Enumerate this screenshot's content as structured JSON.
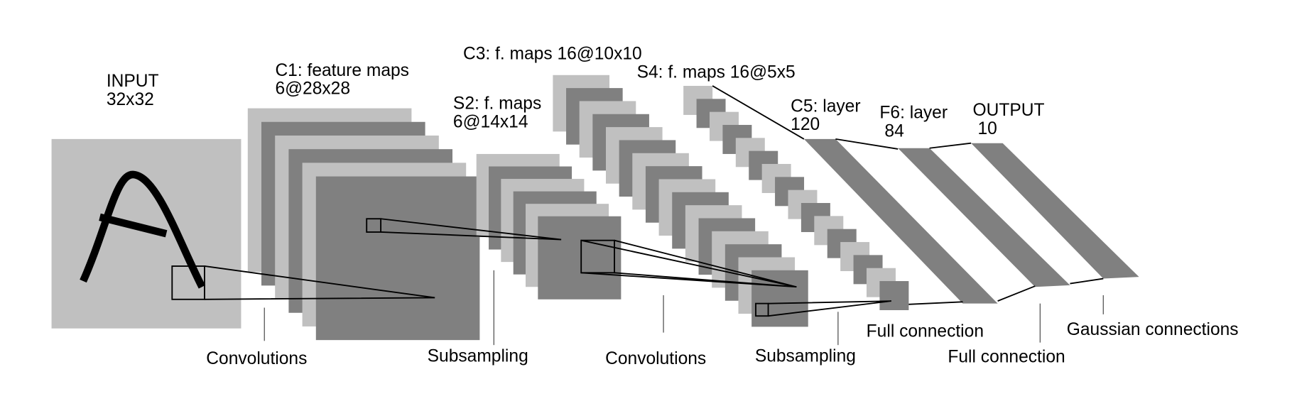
{
  "layers": [
    {
      "name": "INPUT",
      "size": "32x32"
    },
    {
      "name": "C1: feature maps",
      "size": "6@28x28"
    },
    {
      "name": "S2: f. maps",
      "size": "6@14x14"
    },
    {
      "name": "C3: f. maps 16@10x10"
    },
    {
      "name": "S4: f. maps 16@5x5"
    },
    {
      "name": "C5: layer",
      "size": "120"
    },
    {
      "name": "F6: layer",
      "size": "84"
    },
    {
      "name": "OUTPUT",
      "size": "10"
    }
  ],
  "operations": [
    "Convolutions",
    "Subsampling",
    "Convolutions",
    "Subsampling",
    "Full connection",
    "Full connection",
    "Gaussian connections"
  ]
}
